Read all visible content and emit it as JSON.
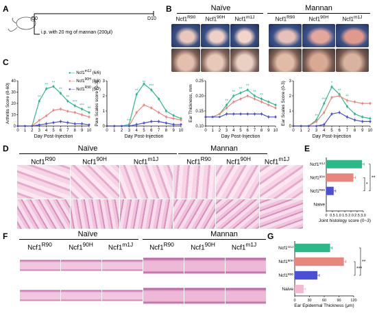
{
  "panels": {
    "A": "A",
    "B": "B",
    "C": "C",
    "D": "D",
    "E": "E",
    "F": "F",
    "G": "G"
  },
  "panelA": {
    "d0": "D0",
    "d10": "D10",
    "injection": "i.p. with 20 mg of mannan (200μl)"
  },
  "groups": {
    "naive": "Naïve",
    "mannan": "Mannan"
  },
  "strains": [
    {
      "base": "Ncf1",
      "sup": "R90"
    },
    {
      "base": "Ncf1",
      "sup": "90H"
    },
    {
      "base": "Ncf1",
      "sup": "m1J"
    }
  ],
  "panelC": {
    "legend": [
      {
        "base": "Ncf1",
        "sup": "m1J",
        "suffix": " (6/6)",
        "color": "#2db88a"
      },
      {
        "base": "Ncf1",
        "sup": "90H",
        "suffix": " (8/8)",
        "color": "#e8867c"
      },
      {
        "base": "Ncf1",
        "sup": "R90",
        "suffix": " (5/7)",
        "color": "#4b4fd6"
      }
    ]
  },
  "chart_data": [
    {
      "type": "line",
      "ylabel": "Arthritis Score (0-60)",
      "xlabel": "Day Post-Injection",
      "x": [
        0,
        1,
        2,
        3,
        4,
        5,
        6,
        7,
        8,
        9,
        10
      ],
      "ylim": [
        0,
        40
      ],
      "yticks": [
        0,
        10,
        20,
        30,
        40
      ],
      "series": [
        {
          "name": "Ncf1m1J (6/6)",
          "values": [
            0,
            0,
            0,
            22,
            33,
            35,
            29,
            22,
            18,
            15,
            12
          ]
        },
        {
          "name": "Ncf190H (8/8)",
          "values": [
            0,
            0,
            0,
            5,
            9,
            14,
            15,
            13,
            12,
            10,
            8
          ]
        },
        {
          "name": "Ncf1R90 (5/7)",
          "values": [
            0,
            0,
            0,
            1,
            2,
            3,
            4,
            3,
            2,
            2,
            1
          ]
        }
      ],
      "annotations": [
        "**",
        "**",
        "**",
        "**",
        "**",
        "***",
        "***",
        "**",
        "**"
      ]
    },
    {
      "type": "line",
      "ylabel": "Paw Scales score (0-3)",
      "xlabel": "Day Post-Injection",
      "x": [
        0,
        1,
        2,
        3,
        4,
        5,
        6,
        7,
        8,
        9,
        10
      ],
      "ylim": [
        0,
        3
      ],
      "yticks": [
        0,
        1,
        2,
        3
      ],
      "series": [
        {
          "name": "Ncf1m1J",
          "values": [
            0,
            0,
            0,
            0.1,
            2.1,
            2.8,
            2.4,
            1.8,
            1.0,
            0.7,
            0.5
          ]
        },
        {
          "name": "Ncf190H",
          "values": [
            0,
            0,
            0,
            0,
            0.9,
            1.4,
            1.2,
            0.9,
            0.6,
            0.5,
            0.4
          ]
        },
        {
          "name": "Ncf1R90",
          "values": [
            0,
            0,
            0,
            0,
            0.1,
            0.2,
            0.3,
            0.3,
            0.2,
            0.1,
            0.1
          ]
        }
      ],
      "annotations": [
        "***",
        "**",
        "**",
        "***"
      ]
    },
    {
      "type": "line",
      "ylabel": "Ear Thickness, mm",
      "xlabel": "Day Post-Injection",
      "x": [
        0,
        1,
        2,
        3,
        4,
        5,
        6,
        7,
        8,
        9,
        10
      ],
      "ylim": [
        0.1,
        0.25
      ],
      "yticks": [
        0.1,
        0.15,
        0.2,
        0.25
      ],
      "series": [
        {
          "name": "Ncf1m1J",
          "values": [
            0.13,
            0.13,
            0.14,
            0.17,
            0.2,
            0.21,
            0.22,
            0.2,
            0.19,
            0.18,
            0.17
          ]
        },
        {
          "name": "Ncf190H",
          "values": [
            0.13,
            0.13,
            0.14,
            0.16,
            0.18,
            0.19,
            0.2,
            0.19,
            0.18,
            0.17,
            0.16
          ]
        },
        {
          "name": "Ncf1R90",
          "values": [
            0.13,
            0.13,
            0.13,
            0.14,
            0.14,
            0.14,
            0.14,
            0.14,
            0.14,
            0.13,
            0.13
          ]
        }
      ],
      "annotations": [
        "**",
        "**",
        "**",
        "**",
        "**",
        "**"
      ]
    },
    {
      "type": "line",
      "ylabel": "Ear Scales Score (0-3)",
      "xlabel": "Day Post-Injection",
      "x": [
        0,
        1,
        2,
        3,
        4,
        5,
        6,
        7,
        8,
        9,
        10
      ],
      "ylim": [
        0,
        3
      ],
      "yticks": [
        0,
        1,
        2,
        3
      ],
      "series": [
        {
          "name": "Ncf1m1J",
          "values": [
            0,
            0,
            0,
            0.4,
            1.5,
            2.6,
            2.1,
            1.3,
            0.8,
            0.6,
            0.5
          ]
        },
        {
          "name": "Ncf190H",
          "values": [
            0,
            0,
            0,
            0.3,
            0.9,
            1.9,
            2.0,
            1.7,
            1.6,
            1.5,
            1.5
          ]
        },
        {
          "name": "Ncf1R90",
          "values": [
            0,
            0,
            0,
            0,
            0.1,
            0.8,
            0.9,
            0.6,
            0.4,
            0.3,
            0.3
          ]
        }
      ],
      "annotations": [
        "**",
        "***",
        "*",
        "**",
        "**"
      ]
    },
    {
      "type": "bar",
      "orientation": "horizontal",
      "xlabel": "Joint histology score (0~3)",
      "categories": [
        "Ncf1m1J",
        "Ncf190H",
        "Ncf1R90",
        "Naive"
      ],
      "values": [
        2.9,
        2.2,
        0.6,
        0
      ],
      "xlim": [
        0,
        3
      ],
      "xticks": [
        "0",
        "0.5",
        "1.0",
        "1.5",
        "2.0",
        "2.5",
        "3.0"
      ],
      "colors": [
        "#2db88a",
        "#e8867c",
        "#4b4fd6",
        "#f4b8cf"
      ],
      "significance": [
        "*",
        "**"
      ]
    },
    {
      "type": "bar",
      "orientation": "horizontal",
      "xlabel": "Ear Epidermal Thickness (μm)",
      "categories": [
        "Ncf1m1J",
        "Ncf190H",
        "Ncf1R90",
        "Naive"
      ],
      "values": [
        72,
        100,
        46,
        18
      ],
      "xlim": [
        0,
        120
      ],
      "xticks": [
        "0",
        "30",
        "60",
        "90",
        "120"
      ],
      "colors": [
        "#2db88a",
        "#e8867c",
        "#4b4fd6",
        "#f4b8cf"
      ],
      "significance": [
        "***",
        "**"
      ]
    }
  ],
  "panelE": {
    "labels": [
      {
        "base": "Ncf1",
        "sup": "m1J"
      },
      {
        "base": "Ncf1",
        "sup": "90H"
      },
      {
        "base": "Ncf1",
        "sup": "R90"
      },
      {
        "base": "Naive",
        "sup": ""
      }
    ]
  },
  "panelG": {
    "labels": [
      {
        "base": "Ncf1",
        "sup": "m1J"
      },
      {
        "base": "Ncf1",
        "sup": "90H"
      },
      {
        "base": "Ncf1",
        "sup": "R90"
      },
      {
        "base": "Naive",
        "sup": ""
      }
    ]
  }
}
